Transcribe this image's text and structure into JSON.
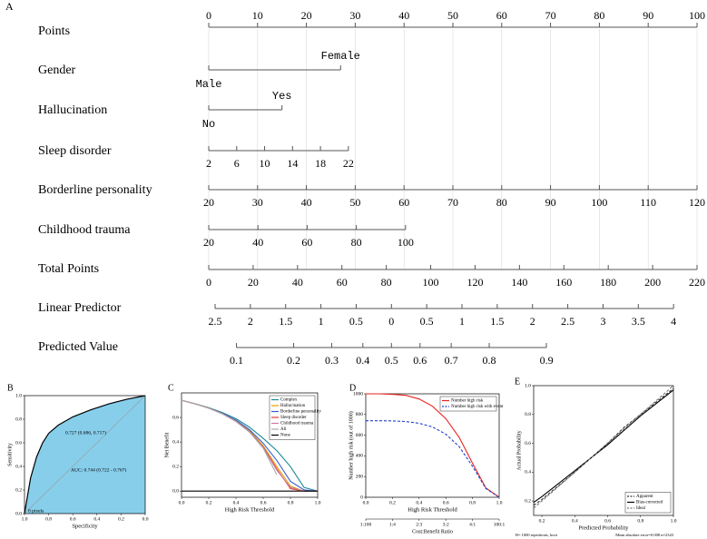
{
  "nomogram": {
    "panel": "A",
    "points": {
      "label": "Points",
      "ticks": [
        0,
        10,
        20,
        30,
        40,
        50,
        60,
        70,
        80,
        90,
        100
      ]
    },
    "variables": [
      {
        "label": "Gender",
        "levels": [
          {
            "label": "Male",
            "points": 0
          },
          {
            "label": "Female",
            "points": 27
          }
        ]
      },
      {
        "label": "Hallucination",
        "levels": [
          {
            "label": "No",
            "points": 0
          },
          {
            "label": "Yes",
            "points": 15
          }
        ]
      },
      {
        "label": "Sleep disorder",
        "range": [
          2,
          22
        ],
        "points_range": [
          0,
          28.6
        ],
        "ticks": [
          2,
          6,
          10,
          14,
          18,
          22
        ]
      },
      {
        "label": "Borderline personality",
        "range": [
          20,
          120
        ],
        "points_range": [
          0,
          100
        ],
        "ticks": [
          20,
          30,
          40,
          50,
          60,
          70,
          80,
          90,
          100,
          110,
          120
        ]
      },
      {
        "label": "Childhood trauma",
        "range": [
          20,
          100
        ],
        "points_range": [
          0,
          40.3
        ],
        "ticks": [
          20,
          40,
          60,
          80,
          100
        ]
      }
    ],
    "total_points": {
      "label": "Total Points",
      "range": [
        0,
        220
      ],
      "points_range": [
        0,
        100
      ],
      "ticks": [
        0,
        20,
        40,
        60,
        80,
        100,
        120,
        140,
        160,
        180,
        200,
        220
      ]
    },
    "linear_predictor": {
      "label": "Linear Predictor",
      "range": [
        -2.5,
        4
      ],
      "points_range": [
        1.3,
        95.2
      ],
      "ticks": [
        {
          "value": -2.5,
          "label": "2.5"
        },
        {
          "value": -2,
          "label": "2"
        },
        {
          "value": -1.5,
          "label": "1.5"
        },
        {
          "value": -1,
          "label": "1"
        },
        {
          "value": -0.5,
          "label": "0.5"
        },
        0,
        0.5,
        1,
        1.5,
        2,
        2.5,
        3,
        3.5,
        4
      ]
    },
    "predicted_value": {
      "label": "Predicted Value",
      "ticks": [
        0.1,
        0.2,
        0.3,
        0.4,
        0.5,
        0.6,
        0.7,
        0.8,
        0.9
      ]
    }
  },
  "chart_data": [
    {
      "type": "area",
      "panel": "B",
      "xlabel": "Specificity",
      "ylabel": "Sensitivity",
      "color": "#87ceeb",
      "xlim": [
        1,
        0
      ],
      "ylim": [
        0,
        1
      ],
      "xticks": [
        {
          "value": 1,
          "label": "1.0"
        },
        0.8,
        0.6,
        0.4,
        0.2,
        {
          "value": 0,
          "label": "0.0"
        }
      ],
      "yticks": [
        {
          "value": 0,
          "label": "0.0"
        },
        0.2,
        0.4,
        0.6,
        0.8,
        {
          "value": 1,
          "label": "1.0"
        }
      ],
      "x": [
        1,
        0.98,
        0.95,
        0.9,
        0.85,
        0.8,
        0.72,
        0.6,
        0.45,
        0.3,
        0.15,
        0
      ],
      "values": [
        0,
        0.12,
        0.3,
        0.48,
        0.6,
        0.68,
        0.75,
        0.82,
        0.88,
        0.93,
        0.97,
        1
      ],
      "annotations": [
        "0.727 (0.686, 0.717)",
        "AUC: 0.744 (0.722 - 0.767)",
        "0 pixels"
      ]
    },
    {
      "type": "line",
      "panel": "C",
      "xlabel": "High Risk Threshold",
      "ylabel": "Net Benefit",
      "legend": "upper right",
      "xlim": [
        0,
        1
      ],
      "ylim": [
        -0.05,
        0.8
      ],
      "xticks": [
        {
          "value": 0,
          "label": "0.0"
        },
        0.2,
        0.4,
        0.6,
        0.8,
        {
          "value": 1,
          "label": "1.0"
        }
      ],
      "yticks": [
        {
          "value": 0,
          "label": "0.0"
        },
        0.2,
        0.4,
        0.6
      ],
      "x": [
        0,
        0.1,
        0.2,
        0.3,
        0.4,
        0.5,
        0.6,
        0.7,
        0.8,
        0.9,
        1
      ],
      "series": [
        {
          "name": "Complex",
          "color": "#1a8a9a",
          "values": [
            0.74,
            0.712,
            0.68,
            0.64,
            0.59,
            0.52,
            0.43,
            0.33,
            0.2,
            0.03,
            0
          ]
        },
        {
          "name": "Hallucination",
          "color": "#e69f00",
          "values": [
            0.74,
            0.711,
            0.676,
            0.632,
            0.572,
            0.49,
            0.37,
            0.2,
            0.04,
            0,
            0
          ]
        },
        {
          "name": "Borderline personality",
          "color": "#3a5fcd",
          "values": [
            0.74,
            0.711,
            0.677,
            0.634,
            0.578,
            0.5,
            0.39,
            0.25,
            0.08,
            0.01,
            0
          ]
        },
        {
          "name": "Sleep disorder",
          "color": "#e03c31",
          "values": [
            0.74,
            0.711,
            0.676,
            0.631,
            0.57,
            0.485,
            0.36,
            0.18,
            0.02,
            0,
            0
          ]
        },
        {
          "name": "Childhood trauma",
          "color": "#cc79a7",
          "values": [
            0.74,
            0.711,
            0.675,
            0.63,
            0.568,
            0.482,
            0.355,
            0.17,
            0.03,
            0,
            0
          ]
        },
        {
          "name": "All",
          "color": "#aaaaaa",
          "values": [
            0.74,
            0.711,
            0.675,
            0.629,
            0.567,
            0.48,
            0.35,
            0.133,
            null,
            null,
            null
          ]
        },
        {
          "name": "None",
          "color": "#000000",
          "values": [
            0,
            0,
            0,
            0,
            0,
            0,
            0,
            0,
            0,
            0,
            0
          ]
        }
      ]
    },
    {
      "type": "line",
      "panel": "D",
      "xlabel": "High Risk Threshold",
      "ylabel": "Number high risk (out of 1000)",
      "legend": "upper right",
      "xlim": [
        0,
        1
      ],
      "ylim": [
        0,
        1000
      ],
      "xticks": [
        {
          "value": 0,
          "label": "0.0"
        },
        0.2,
        0.4,
        0.6,
        0.8,
        {
          "value": 1,
          "label": "1.0"
        }
      ],
      "yticks": [
        0,
        200,
        400,
        600,
        800,
        1000
      ],
      "x2label": "Cost:Benefit Ratio",
      "x2ticks": [
        {
          "value": 0,
          "label": "1:100"
        },
        {
          "value": 0.2,
          "label": "1:4"
        },
        {
          "value": 0.4,
          "label": "2:3"
        },
        {
          "value": 0.6,
          "label": "3:2"
        },
        {
          "value": 0.8,
          "label": "4:1"
        },
        {
          "value": 1,
          "label": "100:1"
        }
      ],
      "x": [
        0,
        0.1,
        0.2,
        0.3,
        0.4,
        0.5,
        0.6,
        0.7,
        0.8,
        0.9,
        1
      ],
      "series": [
        {
          "name": "Number high risk",
          "color": "#e8231f",
          "linestyle": "solid",
          "values": [
            1000,
            1000,
            995,
            985,
            950,
            880,
            760,
            580,
            330,
            90,
            0
          ]
        },
        {
          "name": "Number high risk with event",
          "color": "#1f3fd0",
          "linestyle": "dashed",
          "values": [
            740,
            740,
            738,
            732,
            715,
            680,
            610,
            490,
            300,
            85,
            0
          ]
        }
      ]
    },
    {
      "type": "line",
      "panel": "E",
      "xlabel": "Predicted Probability",
      "ylabel": "Actual Probability",
      "legend": "lower right",
      "xlim": [
        0.15,
        1
      ],
      "ylim": [
        0.1,
        1
      ],
      "xticks": [
        0.2,
        0.4,
        0.6,
        0.8,
        {
          "value": 1,
          "label": "1.0"
        }
      ],
      "yticks": [
        0.2,
        0.4,
        0.6,
        0.8,
        {
          "value": 1,
          "label": "1.0"
        }
      ],
      "x": [
        0.15,
        0.2,
        0.3,
        0.4,
        0.5,
        0.6,
        0.7,
        0.8,
        0.9,
        1
      ],
      "series": [
        {
          "name": "Apparent",
          "color": "#333333",
          "linestyle": "dashed",
          "values": [
            0.17,
            0.21,
            0.305,
            0.4,
            0.5,
            0.6,
            0.71,
            0.8,
            0.89,
            0.98
          ]
        },
        {
          "name": "Bias-corrected",
          "color": "#000000",
          "linestyle": "solid",
          "values": [
            0.19,
            0.23,
            0.32,
            0.41,
            0.5,
            0.59,
            0.69,
            0.79,
            0.88,
            0.97
          ]
        },
        {
          "name": "Ideal",
          "color": "#777777",
          "linestyle": "dashed",
          "values": [
            0.15,
            0.2,
            0.3,
            0.4,
            0.5,
            0.6,
            0.7,
            0.8,
            0.9,
            1
          ]
        }
      ],
      "footnotes": [
        "B= 1000 repetitions, boot",
        "Mean absolute error=0.008 n=2343"
      ]
    }
  ]
}
